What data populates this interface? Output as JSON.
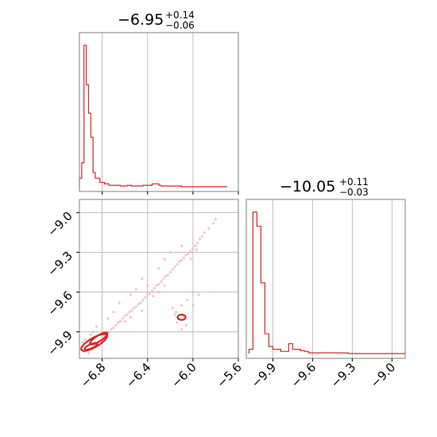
{
  "figure": {
    "param1_title": {
      "median": "−6.95",
      "upper": "+0.14",
      "lower": "−0.06"
    },
    "param2_title": {
      "median": "−10.05",
      "upper": "+0.11",
      "lower": "−0.03"
    }
  },
  "colors": {
    "series": "#d62728",
    "scatter": "#f4b6b7"
  },
  "chart_data": [
    {
      "type": "histogram",
      "panel": "param1-marginal",
      "title": "−6.95 (+0.14 / −0.06)",
      "xlim": [
        -7.0,
        -5.6
      ],
      "x_ticks": [
        -6.8,
        -6.4,
        -6.0,
        -5.6
      ],
      "grid": true,
      "bin_edges": [
        -7.0,
        -6.98,
        -6.96,
        -6.94,
        -6.92,
        -6.9,
        -6.88,
        -6.86,
        -6.84,
        -6.82,
        -6.8,
        -6.78,
        -6.76,
        -6.74,
        -6.72,
        -6.7,
        -6.68,
        -6.66,
        -6.64,
        -6.62,
        -6.6,
        -6.58,
        -6.56,
        -6.54,
        -6.52,
        -6.5,
        -6.48,
        -6.46,
        -6.44,
        -6.42,
        -6.4,
        -6.38,
        -6.36,
        -6.34,
        -6.32,
        -6.3,
        -6.28,
        -6.26,
        -6.24,
        -6.22,
        -6.2,
        -6.18,
        -6.16,
        -6.14,
        -6.12,
        -6.1,
        -6.08,
        -6.06,
        -6.04,
        -6.02,
        -6.0,
        -5.98,
        -5.96,
        -5.94,
        -5.92,
        -5.9,
        -5.88,
        -5.86,
        -5.84,
        -5.82,
        -5.8,
        -5.78,
        -5.76,
        -5.74,
        -5.72,
        -5.7
      ],
      "counts": [
        6,
        17,
        100,
        72,
        52,
        35,
        10,
        6,
        6,
        3,
        3,
        2,
        2,
        1,
        1,
        1,
        1,
        1,
        0.5,
        0.5,
        0.5,
        1,
        1,
        0.5,
        0.5,
        0.5,
        0.5,
        0.5,
        1,
        1,
        1,
        1,
        2,
        2,
        2,
        1,
        0.5,
        0.5,
        0.5,
        0.5,
        0.5,
        0.5,
        0.5,
        0.5,
        0.5,
        0,
        0,
        0,
        0,
        0,
        0,
        0,
        0,
        0,
        0,
        0,
        0,
        0,
        0,
        0,
        0,
        0,
        0,
        0,
        0
      ]
    },
    {
      "type": "scatter",
      "panel": "joint",
      "xlim": [
        -7.0,
        -5.6
      ],
      "ylim": [
        -10.1,
        -8.9
      ],
      "x_ticks": [
        -6.8,
        -6.4,
        -6.0,
        -5.6
      ],
      "y_ticks": [
        -9.0,
        -9.3,
        -9.6,
        -9.9
      ],
      "grid": true,
      "points": [
        [
          -6.95,
          -10.05
        ],
        [
          -6.93,
          -10.04
        ],
        [
          -6.92,
          -10.06
        ],
        [
          -6.9,
          -10.03
        ],
        [
          -6.88,
          -10.02
        ],
        [
          -6.86,
          -10.01
        ],
        [
          -6.84,
          -9.99
        ],
        [
          -6.82,
          -9.97
        ],
        [
          -6.8,
          -9.95
        ],
        [
          -6.78,
          -9.93
        ],
        [
          -6.76,
          -9.91
        ],
        [
          -6.74,
          -9.9
        ],
        [
          -6.72,
          -9.88
        ],
        [
          -6.7,
          -9.87
        ],
        [
          -6.68,
          -9.85
        ],
        [
          -6.66,
          -9.83
        ],
        [
          -6.64,
          -9.82
        ],
        [
          -6.62,
          -9.8
        ],
        [
          -6.6,
          -9.78
        ],
        [
          -6.58,
          -9.77
        ],
        [
          -6.56,
          -9.75
        ],
        [
          -6.54,
          -9.74
        ],
        [
          -6.52,
          -9.72
        ],
        [
          -6.5,
          -9.71
        ],
        [
          -6.48,
          -9.69
        ],
        [
          -6.46,
          -9.68
        ],
        [
          -6.44,
          -9.66
        ],
        [
          -6.42,
          -9.64
        ],
        [
          -6.4,
          -9.62
        ],
        [
          -6.38,
          -9.61
        ],
        [
          -6.36,
          -9.59
        ],
        [
          -6.34,
          -9.57
        ],
        [
          -6.32,
          -9.55
        ],
        [
          -6.3,
          -9.54
        ],
        [
          -6.28,
          -9.52
        ],
        [
          -6.26,
          -9.5
        ],
        [
          -6.24,
          -9.48
        ],
        [
          -6.22,
          -9.47
        ],
        [
          -6.2,
          -9.45
        ],
        [
          -6.18,
          -9.43
        ],
        [
          -6.16,
          -9.41
        ],
        [
          -6.14,
          -9.39
        ],
        [
          -6.12,
          -9.37
        ],
        [
          -6.1,
          -9.36
        ],
        [
          -6.08,
          -9.34
        ],
        [
          -6.06,
          -9.32
        ],
        [
          -6.04,
          -9.31
        ],
        [
          -6.02,
          -9.29
        ],
        [
          -6.0,
          -9.27
        ],
        [
          -5.98,
          -9.25
        ],
        [
          -5.96,
          -9.23
        ],
        [
          -5.94,
          -9.2
        ],
        [
          -5.92,
          -9.18
        ],
        [
          -5.9,
          -9.15
        ],
        [
          -5.86,
          -9.12
        ],
        [
          -5.82,
          -9.08
        ],
        [
          -5.8,
          -9.05
        ],
        [
          -6.6,
          -9.82
        ],
        [
          -6.55,
          -9.79
        ],
        [
          -6.45,
          -9.74
        ],
        [
          -6.35,
          -9.63
        ],
        [
          -6.3,
          -9.6
        ],
        [
          -6.25,
          -9.55
        ],
        [
          -6.18,
          -9.72
        ],
        [
          -6.15,
          -9.75
        ],
        [
          -6.1,
          -9.7
        ],
        [
          -6.05,
          -9.66
        ],
        [
          -6.0,
          -9.7
        ],
        [
          -5.95,
          -9.62
        ],
        [
          -6.2,
          -9.3
        ],
        [
          -6.1,
          -9.25
        ],
        [
          -6.02,
          -9.35
        ],
        [
          -5.97,
          -9.28
        ],
        [
          -6.3,
          -9.42
        ],
        [
          -6.25,
          -9.35
        ],
        [
          -6.55,
          -9.62
        ],
        [
          -6.5,
          -9.58
        ],
        [
          -6.4,
          -9.55
        ],
        [
          -6.45,
          -9.5
        ],
        [
          -6.65,
          -9.68
        ],
        [
          -6.7,
          -9.75
        ],
        [
          -6.88,
          -9.9
        ],
        [
          -6.9,
          -9.92
        ],
        [
          -6.85,
          -9.86
        ],
        [
          -6.95,
          -9.96
        ],
        [
          -6.97,
          -9.98
        ],
        [
          -6.75,
          -9.8
        ],
        [
          -6.12,
          -9.8
        ],
        [
          -6.14,
          -9.83
        ],
        [
          -6.08,
          -9.78
        ],
        [
          -6.06,
          -9.85
        ],
        [
          -6.16,
          -9.77
        ],
        [
          -6.1,
          -9.88
        ]
      ],
      "contours": [
        {
          "cx": -6.1,
          "cy": -9.79,
          "rx": 0.035,
          "ry": 0.02,
          "rot": 0
        },
        {
          "cx": -6.87,
          "cy": -9.98,
          "rx": 0.13,
          "ry": 0.035,
          "rot": -30
        },
        {
          "cx": -6.83,
          "cy": -9.95,
          "rx": 0.09,
          "ry": 0.022,
          "rot": -32
        },
        {
          "cx": -6.9,
          "cy": -10.01,
          "rx": 0.06,
          "ry": 0.016,
          "rot": -25
        }
      ]
    },
    {
      "type": "histogram",
      "panel": "param2-marginal",
      "title": "−10.05 (+0.11 / −0.03)",
      "xlim": [
        -10.1,
        -8.9
      ],
      "x_ticks": [
        -9.9,
        -9.6,
        -9.3,
        -9.0
      ],
      "grid": true,
      "bin_edges": [
        -10.08,
        -10.05,
        -10.02,
        -9.99,
        -9.96,
        -9.93,
        -9.9,
        -9.87,
        -9.84,
        -9.81,
        -9.78,
        -9.75,
        -9.72,
        -9.69,
        -9.66,
        -9.63,
        -9.6,
        -9.57,
        -9.54,
        -9.51,
        -9.48,
        -9.45,
        -9.42,
        -9.39,
        -9.36,
        -9.33,
        -9.3
      ],
      "counts": [
        3,
        100,
        90,
        50,
        14,
        5,
        3,
        3,
        1.5,
        1.5,
        7,
        3,
        3,
        2,
        1.5,
        0.5,
        0.5,
        0.5,
        0.5,
        0.5,
        0.5,
        0.5,
        0.5,
        0.5,
        0.5,
        0
      ]
    }
  ]
}
